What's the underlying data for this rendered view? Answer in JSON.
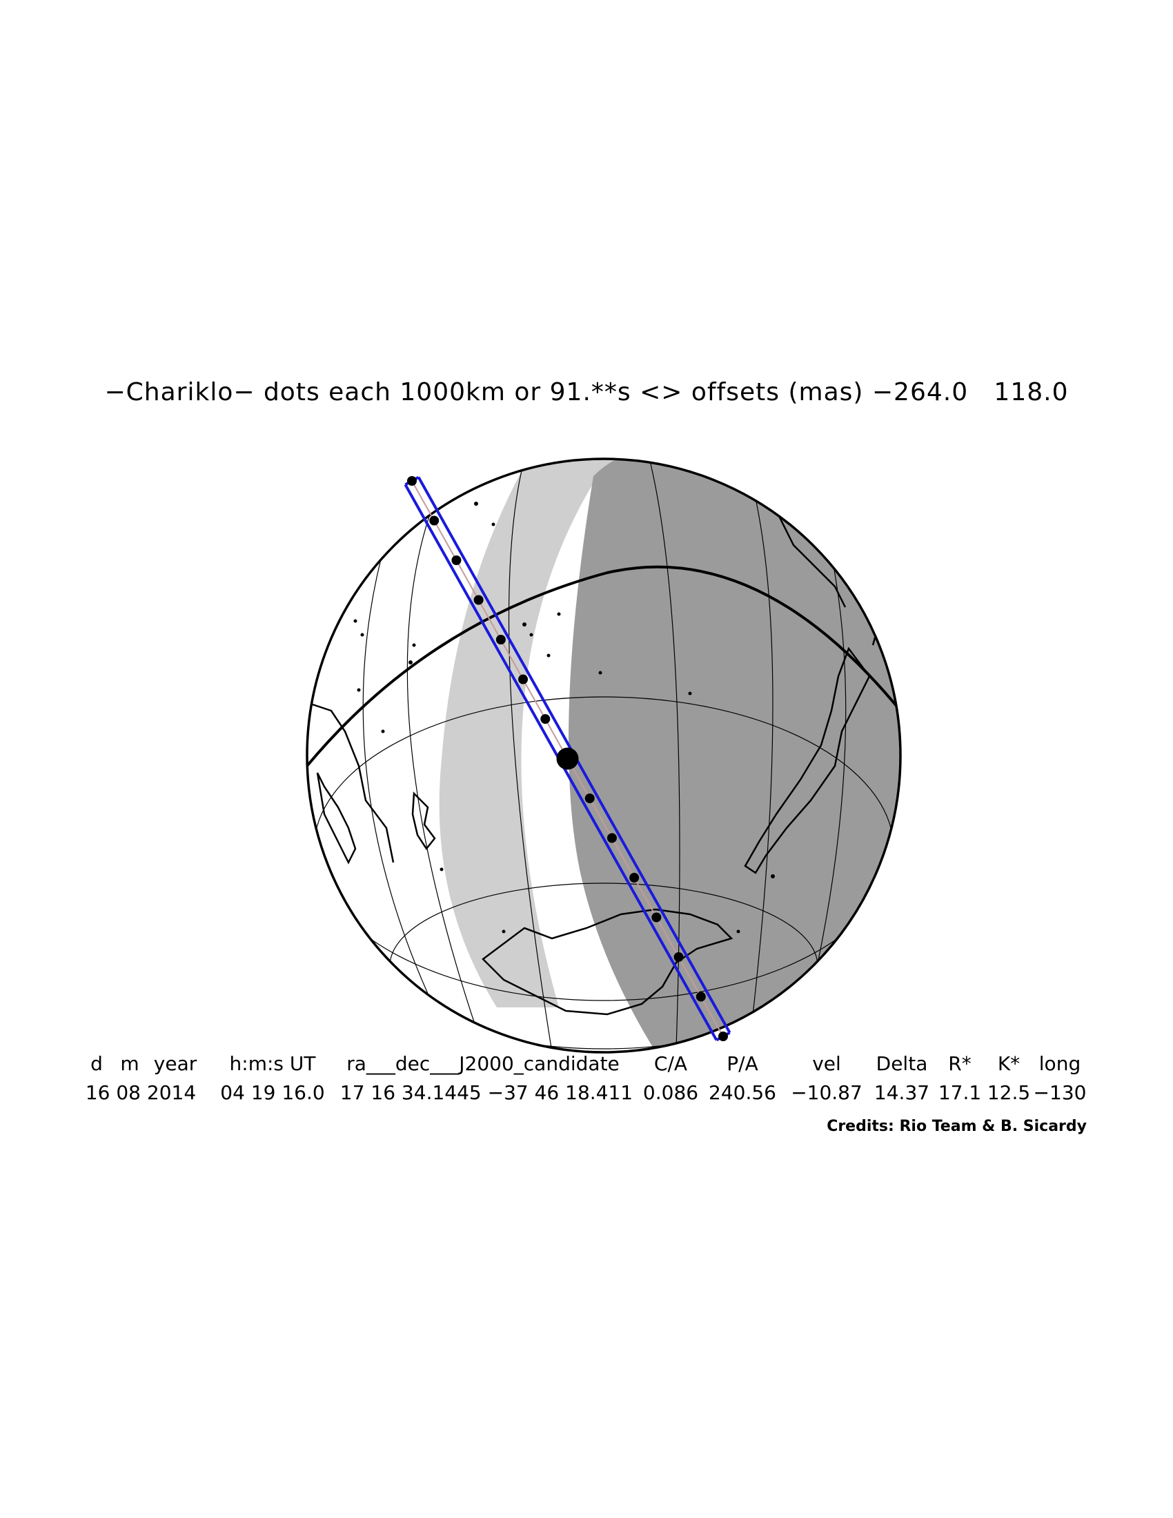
{
  "title": "−Chariklo− dots each 1000km or 91.**s <> offsets (mas) −264.0   118.0",
  "table": {
    "headers": [
      "d",
      "m",
      "year",
      "h:m:s UT",
      "ra___dec___J2000_candidate",
      "C/A",
      "P/A",
      "vel",
      "Delta",
      "R*",
      "K*",
      "long"
    ],
    "values": [
      "16 08 2014",
      "04 19 16.0",
      "17 16 34.1445 −37 46 18.411",
      "0.086",
      "240.56",
      "−10.87",
      "14.37",
      "17.1",
      "12.5",
      "−130"
    ]
  },
  "credits": "Credits: Rio Team & B. Sicardy",
  "colors": {
    "path_band": "#1a1adc",
    "path_center": "#c79a9a",
    "night_shade": "#9b9b9b",
    "twilight_shade": "#cfcfcf",
    "coastline": "#000000",
    "grid": "#000000"
  },
  "icons": [
    "shadow-path-dot",
    "closest-approach-marker"
  ]
}
